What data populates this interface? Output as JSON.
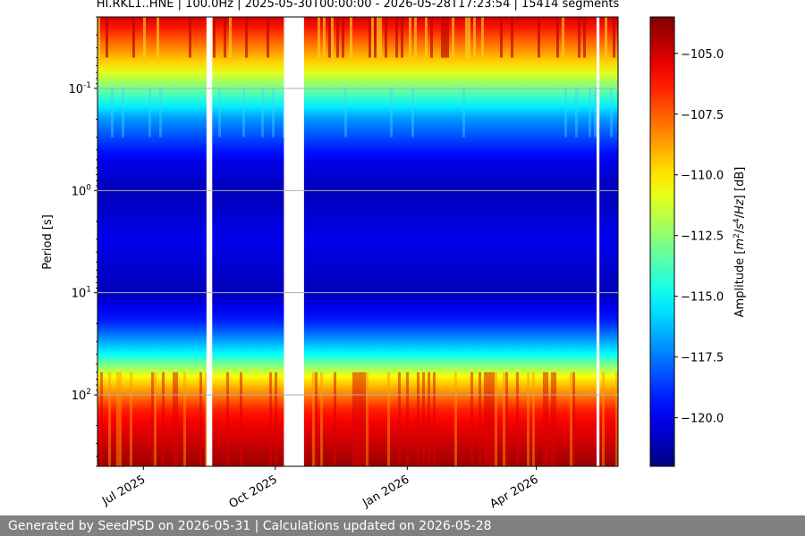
{
  "title": "HI.RKL1..HNE | 100.0Hz | 2025-05-30T00:00:00 - 2026-05-28T17:23:54 | 15414 segments",
  "footer": "Generated by SeedPSD on 2026-05-31 | Calculations updated on 2026-05-28",
  "chart_data": {
    "type": "heatmap",
    "title": "HI.RKL1..HNE | 100.0Hz | 2025-05-30T00:00:00 - 2026-05-28T17:23:54 | 15414 segments",
    "xlabel": "",
    "ylabel": "Period [s]",
    "y_scale": "log",
    "y_inverted": true,
    "xlim": [
      "2025-05-30",
      "2026-05-28"
    ],
    "ylim": [
      500,
      0.02
    ],
    "x_ticks": [
      {
        "value": "2025-07-01",
        "label": "Jul 2025"
      },
      {
        "value": "2025-10-01",
        "label": "Oct 2025"
      },
      {
        "value": "2026-01-01",
        "label": "Jan 2026"
      },
      {
        "value": "2026-04-01",
        "label": "Apr 2026"
      }
    ],
    "y_ticks": [
      {
        "value": 0.1,
        "label": "10^{-1}"
      },
      {
        "value": 1,
        "label": "10^{0}"
      },
      {
        "value": 10,
        "label": "10^{1}"
      },
      {
        "value": 100,
        "label": "10^{2}"
      }
    ],
    "grid": "horizontal",
    "colorbar": {
      "label": "Amplitude [m²/s⁴/Hz] [dB]",
      "colormap": "jet",
      "range": [
        -122,
        -103.5
      ],
      "ticks": [
        {
          "value": -105.0,
          "label": "−105.0"
        },
        {
          "value": -107.5,
          "label": "−107.5"
        },
        {
          "value": -110.0,
          "label": "−110.0"
        },
        {
          "value": -112.5,
          "label": "−112.5"
        },
        {
          "value": -115.0,
          "label": "−115.0"
        },
        {
          "value": -117.5,
          "label": "−117.5"
        },
        {
          "value": -120.0,
          "label": "−120.0"
        }
      ]
    },
    "data_gaps": [
      {
        "start": "2025-08-14",
        "end": "2025-08-18"
      },
      {
        "start": "2025-10-07",
        "end": "2025-10-21"
      },
      {
        "start": "2026-05-13",
        "end": "2026-05-15"
      }
    ],
    "amplitude_profile": [
      {
        "period": 0.02,
        "db": -105
      },
      {
        "period": 0.03,
        "db": -107
      },
      {
        "period": 0.06,
        "db": -110
      },
      {
        "period": 0.1,
        "db": -113
      },
      {
        "period": 0.2,
        "db": -117
      },
      {
        "period": 0.5,
        "db": -120
      },
      {
        "period": 1,
        "db": -121
      },
      {
        "period": 3,
        "db": -120
      },
      {
        "period": 10,
        "db": -121
      },
      {
        "period": 20,
        "db": -119
      },
      {
        "period": 40,
        "db": -115
      },
      {
        "period": 70,
        "db": -110
      },
      {
        "period": 150,
        "db": -106
      },
      {
        "period": 500,
        "db": -104
      }
    ]
  }
}
